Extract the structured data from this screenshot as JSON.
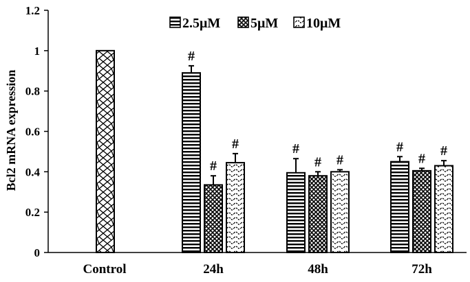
{
  "chart_data": {
    "type": "bar",
    "ylabel": "Bcl2 mRNA expression",
    "xlabel": "",
    "ylim": [
      0,
      1.2
    ],
    "yticks": [
      "0",
      "0.2",
      "0.4",
      "0.6",
      "0.8",
      "1",
      "1.2"
    ],
    "grid": false,
    "legend_position": "top-right",
    "categories": [
      "Control",
      "24h",
      "48h",
      "72h"
    ],
    "control": {
      "value": 1.0,
      "pattern": "diamond-chain"
    },
    "series": [
      {
        "name": "2.5μM",
        "pattern": "horizontal-lines",
        "values": [
          null,
          0.89,
          0.395,
          0.45
        ],
        "errors": [
          null,
          0.035,
          0.07,
          0.025
        ],
        "significance": [
          null,
          "#",
          "#",
          "#"
        ]
      },
      {
        "name": "5μM",
        "pattern": "crosshatch",
        "values": [
          null,
          0.335,
          0.38,
          0.405
        ],
        "errors": [
          null,
          0.045,
          0.02,
          0.012
        ],
        "significance": [
          null,
          "#",
          "#",
          "#"
        ]
      },
      {
        "name": "10μM",
        "pattern": "wave",
        "values": [
          null,
          0.445,
          0.4,
          0.43
        ],
        "errors": [
          null,
          0.045,
          0.01,
          0.025
        ],
        "significance": [
          null,
          "#",
          "#",
          "#"
        ]
      }
    ]
  }
}
